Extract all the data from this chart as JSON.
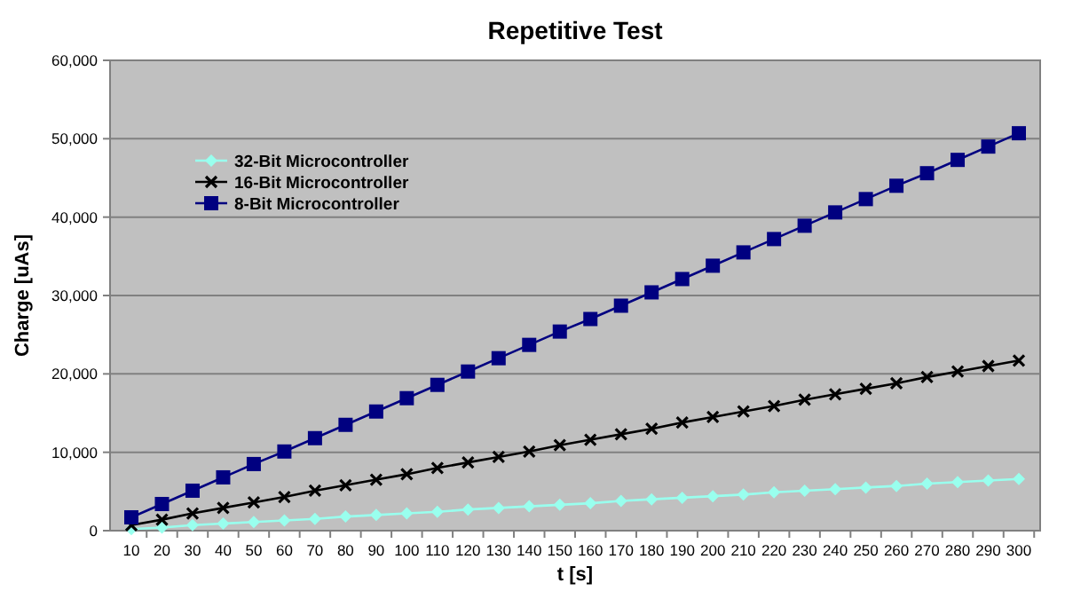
{
  "chart_data": {
    "type": "line",
    "title": "Repetitive Test",
    "xlabel": "t [s]",
    "ylabel": "Charge [uAs]",
    "categories": [
      "10",
      "20",
      "30",
      "40",
      "50",
      "60",
      "70",
      "80",
      "90",
      "100",
      "110",
      "120",
      "130",
      "140",
      "150",
      "160",
      "170",
      "180",
      "190",
      "200",
      "210",
      "220",
      "230",
      "240",
      "250",
      "260",
      "270",
      "280",
      "290",
      "300"
    ],
    "series": [
      {
        "name": "32-Bit Microcontroller",
        "color": "#99ffee",
        "marker": "diamond",
        "values": [
          200,
          400,
          700,
          900,
          1100,
          1300,
          1500,
          1800,
          2000,
          2200,
          2400,
          2700,
          2900,
          3100,
          3300,
          3500,
          3800,
          4000,
          4200,
          4400,
          4600,
          4900,
          5100,
          5300,
          5500,
          5700,
          6000,
          6200,
          6400,
          6600
        ]
      },
      {
        "name": "16-Bit Microcontroller",
        "color": "#000000",
        "marker": "cross",
        "values": [
          700,
          1400,
          2200,
          2900,
          3600,
          4300,
          5100,
          5800,
          6500,
          7200,
          8000,
          8700,
          9400,
          10100,
          10900,
          11600,
          12300,
          13000,
          13800,
          14500,
          15200,
          15900,
          16700,
          17400,
          18100,
          18800,
          19600,
          20300,
          21000,
          21700
        ]
      },
      {
        "name": "8-Bit Microcontroller",
        "color": "#000080",
        "marker": "square",
        "values": [
          1700,
          3400,
          5100,
          6800,
          8500,
          10100,
          11800,
          13500,
          15200,
          16900,
          18600,
          20300,
          22000,
          23700,
          25400,
          27000,
          28700,
          30400,
          32100,
          33800,
          35500,
          37200,
          38900,
          40600,
          42300,
          44000,
          45600,
          47300,
          49000,
          50700
        ]
      }
    ],
    "ylim": [
      0,
      60000
    ],
    "yticks": [
      0,
      {
        "value": 10000,
        "label": "10,000"
      },
      {
        "value": 20000,
        "label": "20,000"
      },
      {
        "value": 30000,
        "label": "30,000"
      },
      {
        "value": 40000,
        "label": "40,000"
      },
      {
        "value": 50000,
        "label": "50,000"
      },
      {
        "value": 60000,
        "label": "60,000"
      }
    ],
    "grid": "y",
    "legend": "top left",
    "line_style": "solid"
  }
}
